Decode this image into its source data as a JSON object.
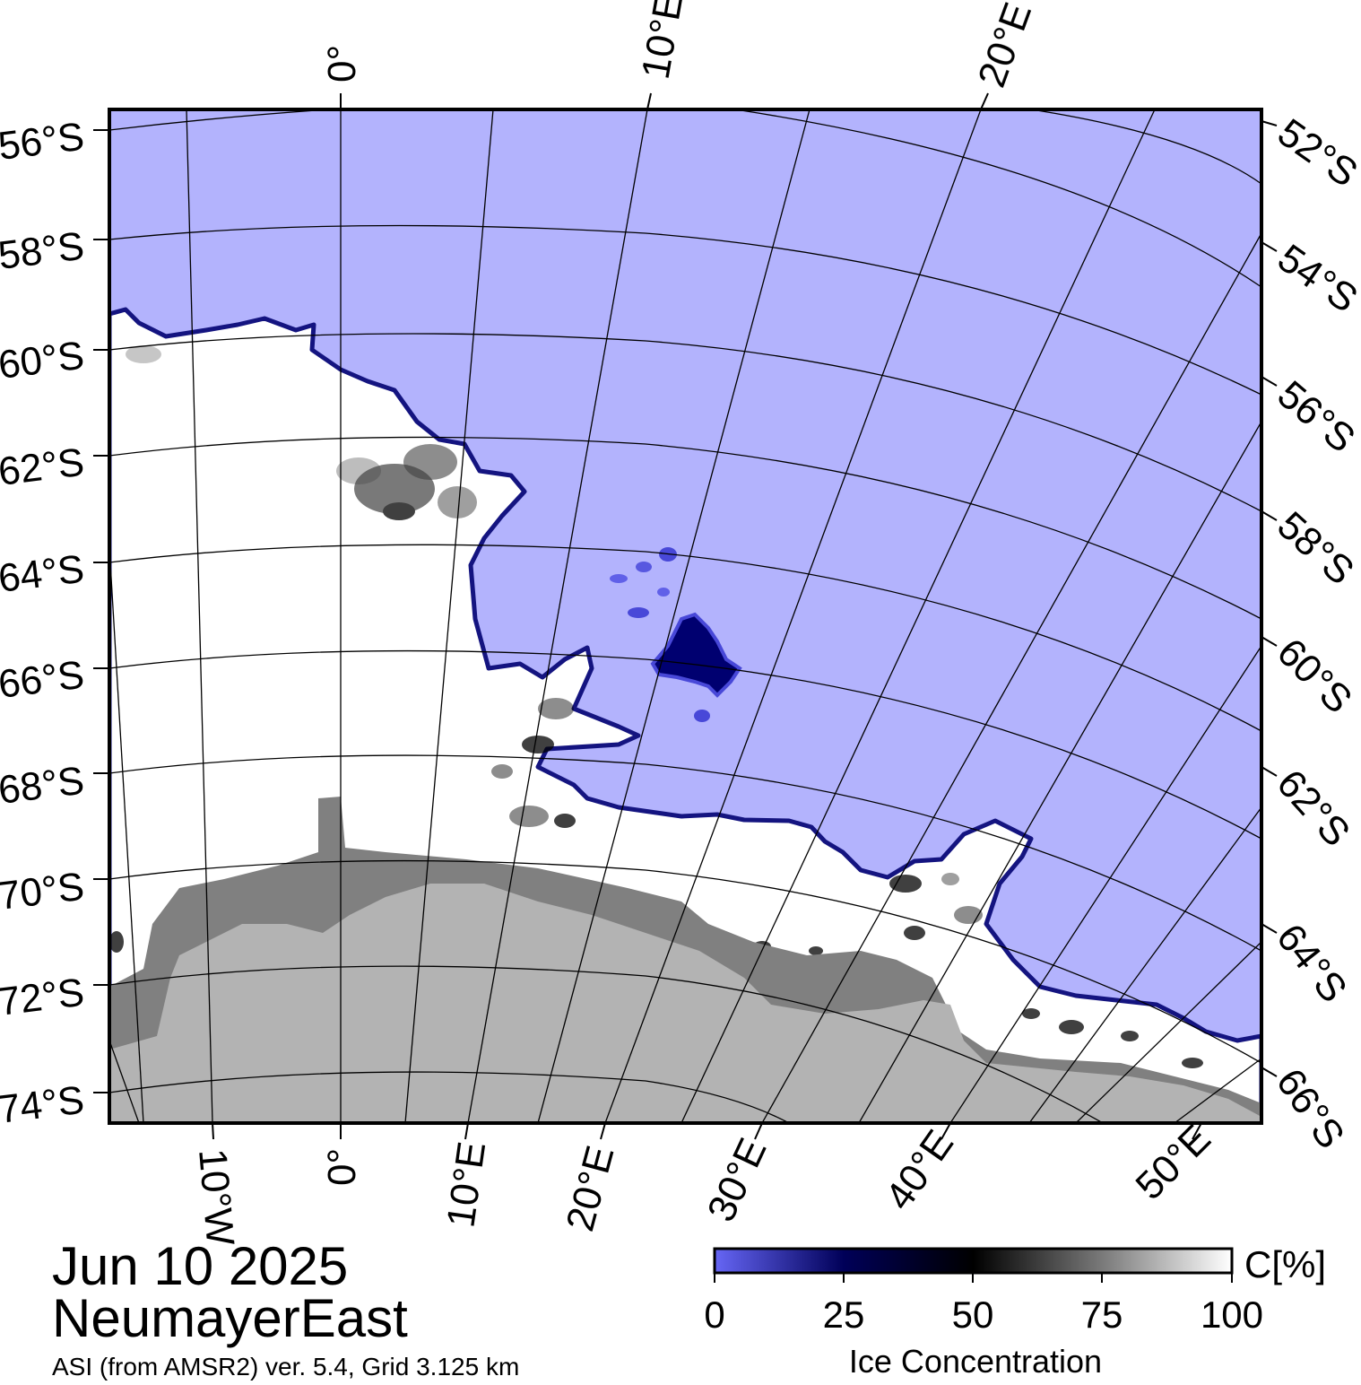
{
  "map": {
    "date": "Jun 10 2025",
    "region": "NeumayerEast",
    "source": "ASI (from AMSR2) ver. 5.4,  Grid 3.125 km",
    "colors": {
      "open_water": "#b3b3fd",
      "land_ice_shelf": "#808080",
      "continent": "#b3b3b3",
      "ice_full": "#ffffff",
      "ice_edge": "#000060"
    },
    "lat_labels_left": [
      "56°S",
      "58°S",
      "60°S",
      "62°S",
      "64°S",
      "66°S",
      "68°S",
      "70°S",
      "72°S",
      "74°S"
    ],
    "lat_labels_right": [
      "52°S",
      "54°S",
      "56°S",
      "58°S",
      "60°S",
      "62°S",
      "64°S",
      "66°S"
    ],
    "lon_labels_top": [
      "0°",
      "10°E",
      "20°E"
    ],
    "lon_labels_bottom": [
      "10°W",
      "0°",
      "10°E",
      "20°E",
      "30°E",
      "40°E",
      "50°E"
    ]
  },
  "colorbar": {
    "title": "Ice Concentration",
    "unit": "C[%]",
    "ticks": [
      "0",
      "25",
      "50",
      "75",
      "100"
    ],
    "stops": [
      "#6666f5",
      "#000058",
      "#000000",
      "#7a7a7a",
      "#ffffff"
    ]
  }
}
